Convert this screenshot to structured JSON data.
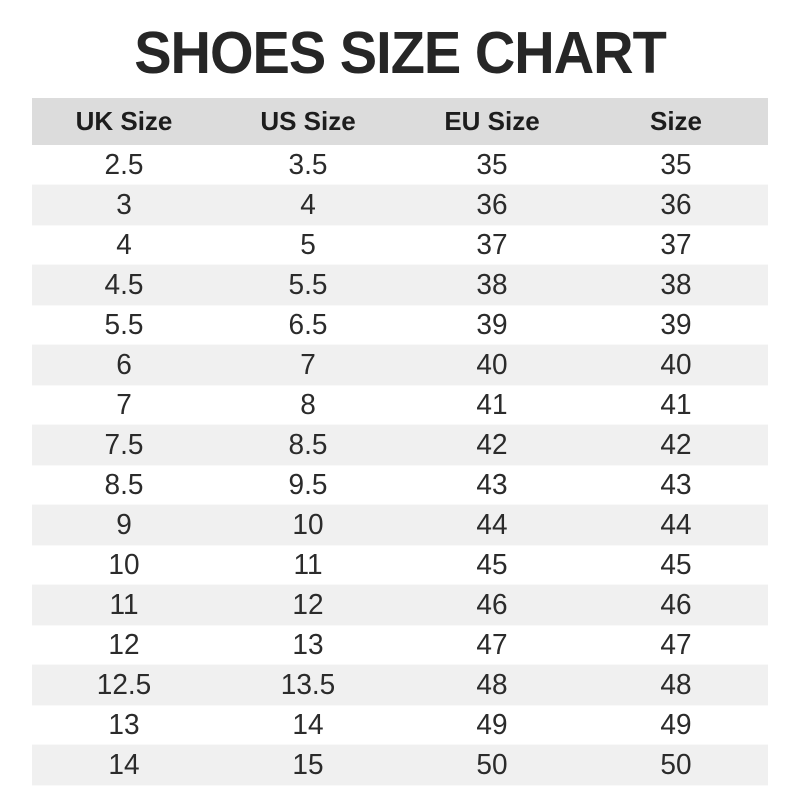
{
  "title": "SHOES SIZE CHART",
  "colors": {
    "background": "#ffffff",
    "header_bg": "#dcdcdc",
    "row_alt_bg": "#f0f0f0",
    "title_text": "#262626",
    "cell_text": "#2b2b2b"
  },
  "chart_data": {
    "type": "table",
    "title": "SHOES SIZE CHART",
    "columns": [
      "UK Size",
      "US Size",
      "EU Size",
      "Size"
    ],
    "rows": [
      [
        "2.5",
        "3.5",
        "35",
        "35"
      ],
      [
        "3",
        "4",
        "36",
        "36"
      ],
      [
        "4",
        "5",
        "37",
        "37"
      ],
      [
        "4.5",
        "5.5",
        "38",
        "38"
      ],
      [
        "5.5",
        "6.5",
        "39",
        "39"
      ],
      [
        "6",
        "7",
        "40",
        "40"
      ],
      [
        "7",
        "8",
        "41",
        "41"
      ],
      [
        "7.5",
        "8.5",
        "42",
        "42"
      ],
      [
        "8.5",
        "9.5",
        "43",
        "43"
      ],
      [
        "9",
        "10",
        "44",
        "44"
      ],
      [
        "10",
        "11",
        "45",
        "45"
      ],
      [
        "11",
        "12",
        "46",
        "46"
      ],
      [
        "12",
        "13",
        "47",
        "47"
      ],
      [
        "12.5",
        "13.5",
        "48",
        "48"
      ],
      [
        "13",
        "14",
        "49",
        "49"
      ],
      [
        "14",
        "15",
        "50",
        "50"
      ]
    ],
    "layout": {
      "stripe_pattern": "even rows shaded",
      "alignment": "center"
    }
  }
}
